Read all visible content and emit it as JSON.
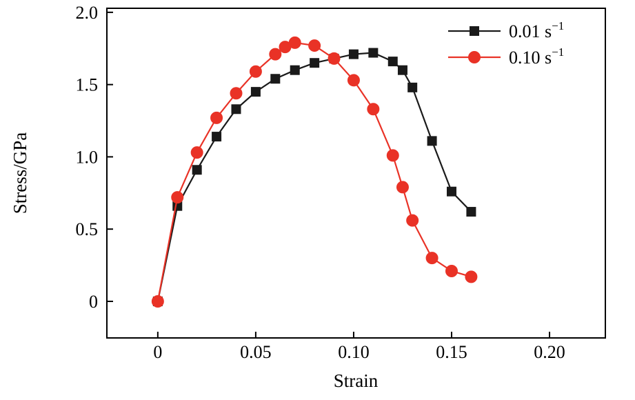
{
  "chart_data": {
    "type": "line",
    "title": "",
    "xlabel": "Strain",
    "ylabel": "Stress/GPa",
    "xlim": [
      -0.026,
      0.2285
    ],
    "ylim": [
      -0.253,
      2.028
    ],
    "grid": false,
    "legend_position": "top-right-inside",
    "axis_color": "#000000",
    "x_ticks": [
      0,
      0.05,
      0.1,
      0.15,
      0.2
    ],
    "x_tick_labels": [
      "0",
      "0.05",
      "0.10",
      "0.15",
      "0.20"
    ],
    "y_ticks": [
      0,
      0.5,
      1.0,
      1.5,
      2.0
    ],
    "y_tick_labels": [
      "0",
      "0.5",
      "1.0",
      "1.5",
      "2.0"
    ],
    "series": [
      {
        "name": "0.01 s^-1",
        "label_base": "0.01 s",
        "label_sup": "−1",
        "color": "#1a1a1a",
        "marker": "square",
        "x": [
          0,
          0.01,
          0.02,
          0.03,
          0.04,
          0.05,
          0.06,
          0.07,
          0.08,
          0.09,
          0.1,
          0.11,
          0.12,
          0.125,
          0.13,
          0.14,
          0.15,
          0.16
        ],
        "y": [
          0,
          0.66,
          0.91,
          1.14,
          1.33,
          1.45,
          1.54,
          1.6,
          1.65,
          1.68,
          1.71,
          1.72,
          1.66,
          1.6,
          1.48,
          1.11,
          0.76,
          0.62
        ]
      },
      {
        "name": "0.10 s^-1",
        "label_base": "0.10 s",
        "label_sup": "−1",
        "color": "#e93226",
        "marker": "circle",
        "x": [
          0,
          0.01,
          0.02,
          0.03,
          0.04,
          0.05,
          0.06,
          0.065,
          0.07,
          0.08,
          0.09,
          0.1,
          0.11,
          0.12,
          0.125,
          0.13,
          0.14,
          0.15,
          0.16
        ],
        "y": [
          0,
          0.72,
          1.03,
          1.27,
          1.44,
          1.59,
          1.71,
          1.76,
          1.79,
          1.77,
          1.68,
          1.53,
          1.33,
          1.01,
          0.79,
          0.56,
          0.3,
          0.21,
          0.17
        ]
      }
    ]
  }
}
